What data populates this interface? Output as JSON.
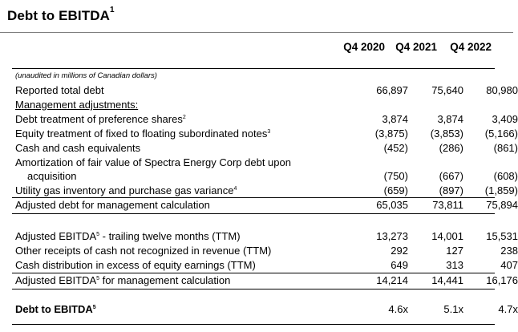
{
  "title": "Debt to EBITDA",
  "title_sup": "1",
  "columns": [
    "Q4 2020",
    "Q4 2021",
    "Q4 2022"
  ],
  "note": "(unaudited in millions of Canadian dollars)",
  "rows": {
    "reported_total_debt": {
      "label": "Reported total debt",
      "values": [
        "66,897",
        "75,640",
        "80,980"
      ]
    },
    "mgmt_adjustments": {
      "label": "Management adjustments:"
    },
    "debt_pref": {
      "label": "Debt treatment of preference shares",
      "sup": "2",
      "values": [
        "3,874",
        "3,874",
        "3,409"
      ]
    },
    "equity_notes": {
      "label": "Equity treatment of fixed to floating subordinated notes",
      "sup": "3",
      "values": [
        "(3,875)",
        "(3,853)",
        "(5,166)"
      ]
    },
    "cash": {
      "label": "Cash and cash equivalents",
      "values": [
        "(452)",
        "(286)",
        "(861)"
      ]
    },
    "amort_line1": {
      "label": "Amortization of fair value of Spectra Energy Corp debt upon"
    },
    "amort_line2": {
      "label": "acquisition",
      "values": [
        "(750)",
        "(667)",
        "(608)"
      ]
    },
    "utility_gas": {
      "label": "Utility gas inventory and purchase gas variance",
      "sup": "4",
      "values": [
        "(659)",
        "(897)",
        "(1,859)"
      ]
    },
    "adjusted_debt": {
      "label": "Adjusted debt for management calculation",
      "values": [
        "65,035",
        "73,811",
        "75,894"
      ]
    },
    "adj_ebitda_ttm": {
      "label_pre": "Adjusted EBITDA",
      "sup": "5",
      "label_post": " - trailing twelve months (TTM)",
      "values": [
        "13,273",
        "14,001",
        "15,531"
      ]
    },
    "other_receipts": {
      "label": "Other receipts of cash not recognized in revenue (TTM)",
      "values": [
        "292",
        "127",
        "238"
      ]
    },
    "cash_dist": {
      "label": "Cash distribution in excess of equity earnings (TTM)",
      "values": [
        "649",
        "313",
        "407"
      ]
    },
    "adj_ebitda_mgmt": {
      "label_pre": "Adjusted EBITDA",
      "sup": "5",
      "label_post": " for management calculation",
      "values": [
        "14,214",
        "14,441",
        "16,176"
      ]
    },
    "debt_to_ebitda": {
      "label": "Debt to EBITDA",
      "sup": "5",
      "values": [
        "4.6x",
        "5.1x",
        "4.7x"
      ]
    }
  }
}
